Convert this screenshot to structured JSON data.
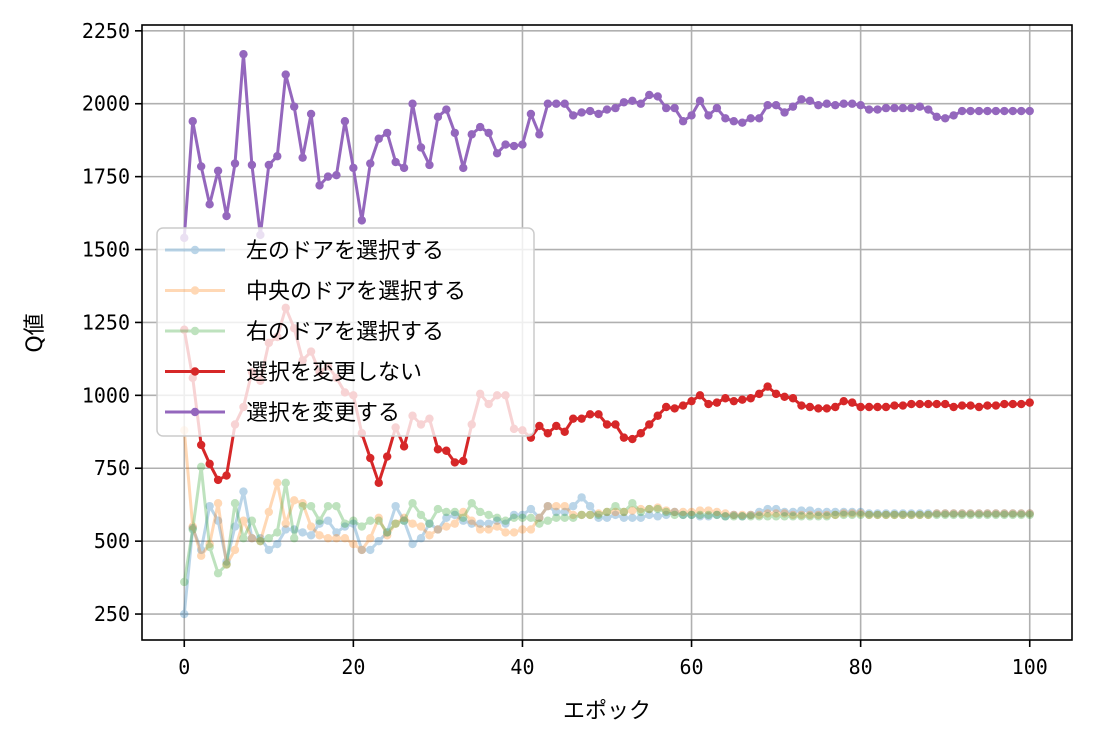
{
  "chart_data": {
    "type": "line",
    "title": "",
    "xlabel": "エポック",
    "ylabel": "Q値",
    "xlim": [
      -5,
      105
    ],
    "ylim": [
      161,
      2270
    ],
    "xticks": [
      0,
      20,
      40,
      60,
      80,
      100
    ],
    "yticks": [
      250,
      500,
      750,
      1000,
      1250,
      1500,
      1750,
      2000,
      2250
    ],
    "grid": true,
    "legend_position": "center-left",
    "x_start": 0,
    "x_step": 1,
    "series": [
      {
        "name": "左のドアを選択する",
        "color": "#1f77b4",
        "faded": true,
        "values": [
          250,
          545,
          470,
          620,
          570,
          430,
          550,
          670,
          510,
          510,
          470,
          490,
          540,
          540,
          530,
          520,
          560,
          570,
          530,
          550,
          560,
          470,
          470,
          500,
          530,
          620,
          570,
          490,
          510,
          560,
          540,
          580,
          590,
          570,
          560,
          560,
          560,
          570,
          560,
          590,
          590,
          610,
          580,
          620,
          600,
          600,
          620,
          650,
          620,
          580,
          580,
          590,
          580,
          580,
          580,
          590,
          585,
          590,
          600,
          590,
          590,
          585,
          585,
          590,
          585,
          590,
          585,
          590,
          600,
          610,
          610,
          600,
          600,
          605,
          605,
          600,
          600,
          600,
          600,
          600,
          600,
          595,
          595,
          595,
          595,
          595,
          595,
          595,
          595,
          595,
          595,
          595,
          595,
          595,
          595,
          595,
          595,
          595,
          595,
          595,
          595
        ]
      },
      {
        "name": "中央のドアを選択する",
        "color": "#ff7f0e",
        "faded": true,
        "values": [
          880,
          550,
          450,
          490,
          630,
          420,
          470,
          570,
          510,
          500,
          600,
          700,
          560,
          640,
          630,
          550,
          520,
          510,
          510,
          510,
          490,
          470,
          510,
          580,
          520,
          560,
          580,
          560,
          550,
          520,
          540,
          550,
          560,
          600,
          570,
          540,
          540,
          550,
          530,
          530,
          540,
          540,
          580,
          620,
          620,
          620,
          590,
          590,
          590,
          595,
          600,
          600,
          600,
          605,
          610,
          610,
          615,
          605,
          600,
          600,
          600,
          605,
          605,
          600,
          595,
          590,
          590,
          590,
          590,
          595,
          595,
          595,
          590,
          590,
          590,
          590,
          590,
          590,
          595,
          595,
          595,
          590,
          590,
          590,
          590,
          590,
          590,
          590,
          590,
          595,
          595,
          595,
          595,
          595,
          595,
          595,
          595,
          595,
          595,
          595,
          595
        ]
      },
      {
        "name": "右のドアを選択する",
        "color": "#2ca02c",
        "faded": true,
        "values": [
          360,
          540,
          755,
          480,
          390,
          420,
          630,
          510,
          570,
          500,
          510,
          530,
          700,
          510,
          620,
          620,
          570,
          620,
          620,
          560,
          570,
          550,
          570,
          570,
          530,
          560,
          570,
          630,
          590,
          560,
          610,
          600,
          600,
          580,
          630,
          600,
          590,
          580,
          570,
          580,
          580,
          580,
          560,
          570,
          580,
          580,
          580,
          590,
          590,
          590,
          600,
          620,
          600,
          630,
          600,
          610,
          610,
          600,
          590,
          590,
          590,
          590,
          590,
          590,
          585,
          585,
          585,
          585,
          585,
          585,
          585,
          585,
          585,
          585,
          585,
          585,
          585,
          590,
          590,
          590,
          590,
          590,
          590,
          590,
          590,
          590,
          590,
          590,
          590,
          590,
          590,
          590,
          590,
          590,
          590,
          590,
          590,
          590,
          590,
          590,
          590
        ]
      },
      {
        "name": "選択を変更しない",
        "color": "#d62728",
        "faded": false,
        "values": [
          1225,
          1060,
          830,
          765,
          710,
          725,
          900,
          960,
          1080,
          1050,
          1180,
          1200,
          1300,
          1230,
          1120,
          1150,
          1080,
          1100,
          1060,
          1010,
          1000,
          870,
          785,
          700,
          790,
          890,
          825,
          930,
          900,
          920,
          815,
          810,
          770,
          775,
          900,
          1005,
          970,
          1000,
          1000,
          885,
          880,
          855,
          895,
          870,
          895,
          875,
          920,
          920,
          935,
          935,
          900,
          900,
          855,
          850,
          870,
          900,
          930,
          960,
          955,
          965,
          980,
          1000,
          970,
          975,
          990,
          980,
          985,
          990,
          1005,
          1030,
          1005,
          995,
          990,
          965,
          960,
          955,
          955,
          960,
          980,
          975,
          960,
          960,
          960,
          960,
          965,
          965,
          970,
          970,
          970,
          970,
          970,
          960,
          965,
          965,
          960,
          965,
          965,
          970,
          970,
          970,
          975
        ]
      },
      {
        "name": "選択を変更する",
        "color": "#9467bd",
        "faded": false,
        "values": [
          1540,
          1940,
          1785,
          1655,
          1770,
          1615,
          1795,
          2170,
          1790,
          1550,
          1790,
          1820,
          2100,
          1990,
          1815,
          1965,
          1720,
          1750,
          1755,
          1940,
          1780,
          1600,
          1795,
          1880,
          1900,
          1800,
          1780,
          2000,
          1850,
          1790,
          1955,
          1980,
          1900,
          1780,
          1895,
          1920,
          1900,
          1830,
          1860,
          1855,
          1860,
          1965,
          1895,
          2000,
          2000,
          2000,
          1960,
          1970,
          1975,
          1965,
          1980,
          1985,
          2005,
          2010,
          2000,
          2030,
          2025,
          1985,
          1985,
          1940,
          1960,
          2010,
          1960,
          1985,
          1950,
          1940,
          1935,
          1950,
          1950,
          1995,
          1995,
          1970,
          1990,
          2015,
          2010,
          1995,
          2000,
          1995,
          2000,
          2000,
          1995,
          1980,
          1980,
          1985,
          1985,
          1985,
          1985,
          1990,
          1980,
          1955,
          1950,
          1960,
          1975,
          1975,
          1975,
          1975,
          1975,
          1975,
          1975,
          1975,
          1975
        ]
      }
    ]
  }
}
